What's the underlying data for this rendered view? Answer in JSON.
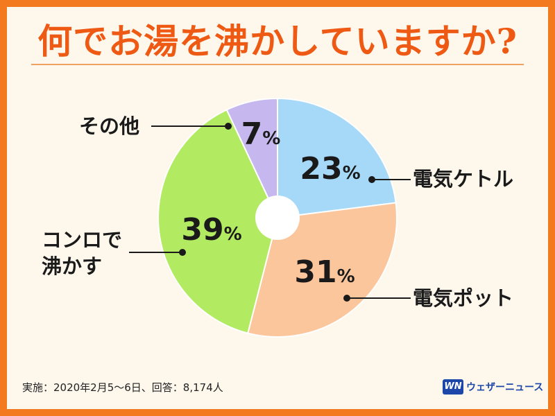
{
  "title": "何でお湯を沸かしていますか?",
  "chart_data": {
    "type": "pie",
    "title": "何でお湯を沸かしていますか?",
    "start_angle_deg": 0,
    "direction": "clockwise",
    "inner_hole": true,
    "slices": [
      {
        "label": "電気ケトル",
        "value": 23,
        "display": "23",
        "color": "#a6d8f8"
      },
      {
        "label": "電気ポット",
        "value": 31,
        "display": "31",
        "color": "#fcc69c"
      },
      {
        "label": "コンロで沸かす",
        "value": 39,
        "display": "39",
        "color": "#b2ea62"
      },
      {
        "label": "その他",
        "value": 7,
        "display": "7",
        "color": "#c6b8ee"
      }
    ],
    "unit": "%"
  },
  "labels": {
    "kettle": "電気ケトル",
    "pot": "電気ポット",
    "stove_line1": "コンロで",
    "stove_line2": "沸かす",
    "other": "その他"
  },
  "footer": {
    "note": "実施：2020年2月5～6日、回答：8,174人",
    "brand_logo": "WN",
    "brand_name": "ウェザーニュース"
  },
  "colors": {
    "border": "#f47a1f",
    "title": "#ee5a14",
    "background": "#fdf7ec",
    "brand": "#1c46a8"
  }
}
